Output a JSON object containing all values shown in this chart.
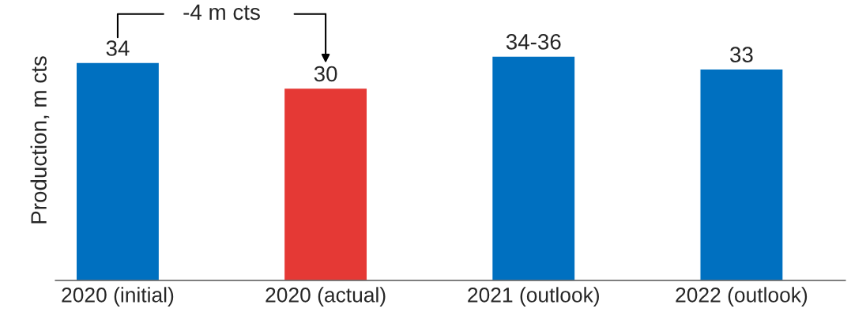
{
  "chart_data": {
    "type": "bar",
    "ylabel": "Production, m cts",
    "categories": [
      "2020 (initial)",
      "2020 (actual)",
      "2021 (outlook)",
      "2022 (outlook)"
    ],
    "values": [
      34,
      30,
      35,
      33
    ],
    "value_labels": [
      "34",
      "30",
      "34-36",
      "33"
    ],
    "colors": [
      "#0070c0",
      "#e53935",
      "#0070c0",
      "#0070c0"
    ],
    "annotations": [
      "-4 m cts"
    ],
    "grid": false,
    "legend": false
  }
}
